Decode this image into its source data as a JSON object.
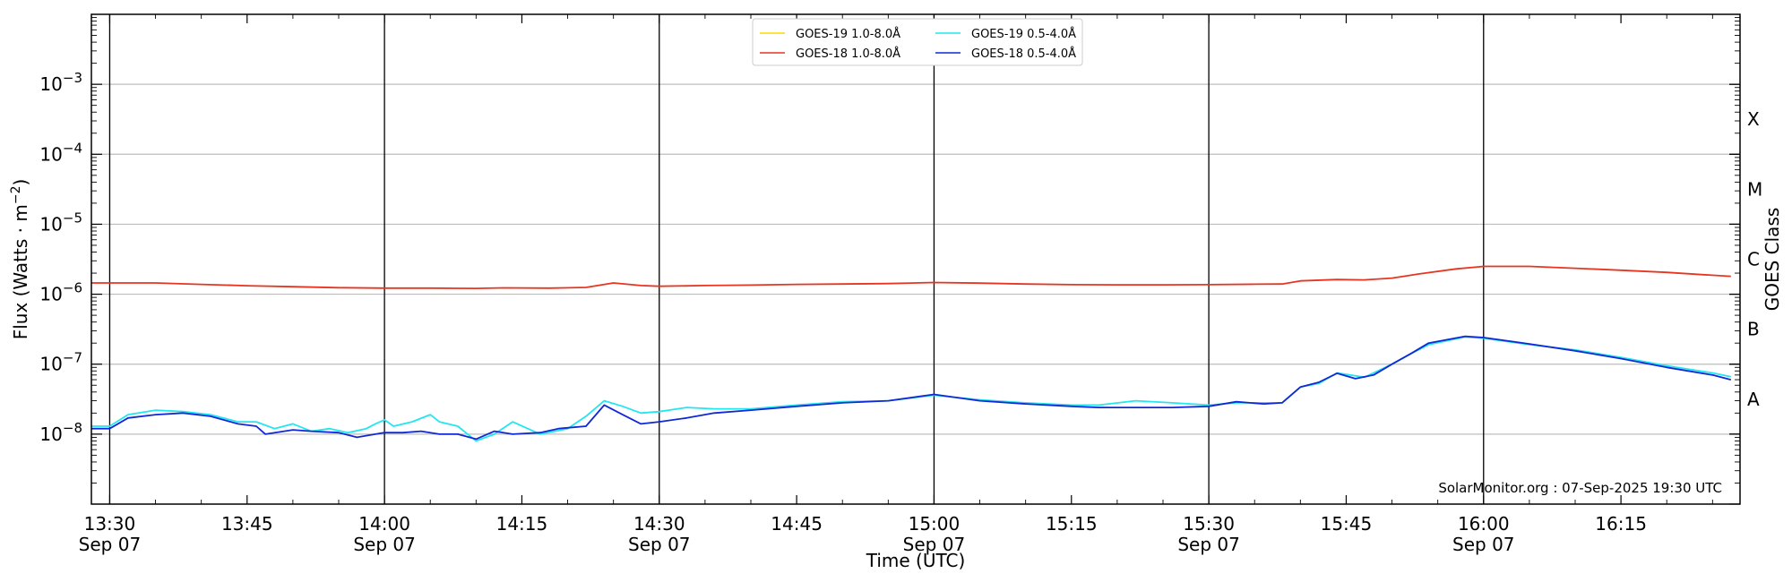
{
  "chart_data": {
    "type": "line",
    "title": "",
    "xlabel": "Time (UTC)",
    "ylabel": "Flux (Watts · m",
    "ylabel_sup": "−2",
    "ylabel_end": ")",
    "right_label": "GOES Class",
    "y_scale": "log",
    "ylim": [
      1e-09,
      0.01
    ],
    "xlim": [
      "13:28",
      "16:28"
    ],
    "y_ticks": [
      {
        "base": "10",
        "exp": "−3",
        "value": 0.001
      },
      {
        "base": "10",
        "exp": "−4",
        "value": 0.0001
      },
      {
        "base": "10",
        "exp": "−5",
        "value": 1e-05
      },
      {
        "base": "10",
        "exp": "−6",
        "value": 1e-06
      },
      {
        "base": "10",
        "exp": "−7",
        "value": 1e-07
      },
      {
        "base": "10",
        "exp": "−8",
        "value": 1e-08
      }
    ],
    "x_ticks": [
      {
        "t": "13:30",
        "label": "13:30",
        "date": "Sep 07",
        "day_line": true
      },
      {
        "t": "13:45",
        "label": "13:45",
        "date": "",
        "day_line": false
      },
      {
        "t": "14:00",
        "label": "14:00",
        "date": "Sep 07",
        "day_line": true
      },
      {
        "t": "14:15",
        "label": "14:15",
        "date": "",
        "day_line": false
      },
      {
        "t": "14:30",
        "label": "14:30",
        "date": "Sep 07",
        "day_line": true
      },
      {
        "t": "14:45",
        "label": "14:45",
        "date": "",
        "day_line": false
      },
      {
        "t": "15:00",
        "label": "15:00",
        "date": "Sep 07",
        "day_line": true
      },
      {
        "t": "15:15",
        "label": "15:15",
        "date": "",
        "day_line": false
      },
      {
        "t": "15:30",
        "label": "15:30",
        "date": "Sep 07",
        "day_line": true
      },
      {
        "t": "15:45",
        "label": "15:45",
        "date": "",
        "day_line": false
      },
      {
        "t": "16:00",
        "label": "16:00",
        "date": "Sep 07",
        "day_line": true
      },
      {
        "t": "16:15",
        "label": "16:15",
        "date": "",
        "day_line": false
      }
    ],
    "goes_classes": [
      {
        "label": "X",
        "value": 0.000316
      },
      {
        "label": "M",
        "value": 3.16e-05
      },
      {
        "label": "C",
        "value": 3.16e-06
      },
      {
        "label": "B",
        "value": 3.16e-07
      },
      {
        "label": "A",
        "value": 3.16e-08
      }
    ],
    "grid": true,
    "legend_position": "top-center",
    "credit": "SolarMonitor.org : 07-Sep-2025 19:30 UTC",
    "series": [
      {
        "name": "GOES-19 1.0-8.0Å",
        "color": "#ffd700",
        "points": []
      },
      {
        "name": "GOES-18 1.0-8.0Å",
        "color": "#e8351f",
        "points": [
          [
            "13:28",
            1.45e-06
          ],
          [
            "13:30",
            1.45e-06
          ],
          [
            "13:35",
            1.45e-06
          ],
          [
            "13:40",
            1.38e-06
          ],
          [
            "13:45",
            1.32e-06
          ],
          [
            "13:50",
            1.28e-06
          ],
          [
            "13:55",
            1.24e-06
          ],
          [
            "14:00",
            1.22e-06
          ],
          [
            "14:05",
            1.22e-06
          ],
          [
            "14:10",
            1.21e-06
          ],
          [
            "14:13",
            1.23e-06
          ],
          [
            "14:18",
            1.22e-06
          ],
          [
            "14:22",
            1.25e-06
          ],
          [
            "14:25",
            1.45e-06
          ],
          [
            "14:28",
            1.33e-06
          ],
          [
            "14:30",
            1.3e-06
          ],
          [
            "14:35",
            1.33e-06
          ],
          [
            "14:40",
            1.35e-06
          ],
          [
            "14:45",
            1.38e-06
          ],
          [
            "14:50",
            1.4e-06
          ],
          [
            "14:55",
            1.42e-06
          ],
          [
            "15:00",
            1.47e-06
          ],
          [
            "15:05",
            1.44e-06
          ],
          [
            "15:10",
            1.4e-06
          ],
          [
            "15:15",
            1.37e-06
          ],
          [
            "15:20",
            1.36e-06
          ],
          [
            "15:25",
            1.36e-06
          ],
          [
            "15:30",
            1.37e-06
          ],
          [
            "15:35",
            1.39e-06
          ],
          [
            "15:38",
            1.4e-06
          ],
          [
            "15:40",
            1.55e-06
          ],
          [
            "15:44",
            1.62e-06
          ],
          [
            "15:47",
            1.6e-06
          ],
          [
            "15:50",
            1.7e-06
          ],
          [
            "15:53",
            1.95e-06
          ],
          [
            "15:57",
            2.3e-06
          ],
          [
            "16:00",
            2.5e-06
          ],
          [
            "16:05",
            2.5e-06
          ],
          [
            "16:10",
            2.35e-06
          ],
          [
            "16:15",
            2.2e-06
          ],
          [
            "16:20",
            2.05e-06
          ],
          [
            "16:24",
            1.9e-06
          ],
          [
            "16:27",
            1.8e-06
          ]
        ]
      },
      {
        "name": "GOES-19 0.5-4.0Å",
        "color": "#22e6f0",
        "points": [
          [
            "13:28",
            1.3e-08
          ],
          [
            "13:30",
            1.3e-08
          ],
          [
            "13:32",
            1.9e-08
          ],
          [
            "13:35",
            2.2e-08
          ],
          [
            "13:38",
            2.1e-08
          ],
          [
            "13:41",
            1.9e-08
          ],
          [
            "13:44",
            1.5e-08
          ],
          [
            "13:46",
            1.5e-08
          ],
          [
            "13:48",
            1.2e-08
          ],
          [
            "13:50",
            1.4e-08
          ],
          [
            "13:52",
            1.1e-08
          ],
          [
            "13:54",
            1.2e-08
          ],
          [
            "13:56",
            1.05e-08
          ],
          [
            "13:58",
            1.2e-08
          ],
          [
            "13:59",
            1.4e-08
          ],
          [
            "14:00",
            1.6e-08
          ],
          [
            "14:01",
            1.3e-08
          ],
          [
            "14:03",
            1.5e-08
          ],
          [
            "14:05",
            1.9e-08
          ],
          [
            "14:06",
            1.5e-08
          ],
          [
            "14:08",
            1.3e-08
          ],
          [
            "14:10",
            8e-09
          ],
          [
            "14:12",
            1e-08
          ],
          [
            "14:14",
            1.5e-08
          ],
          [
            "14:17",
            1e-08
          ],
          [
            "14:20",
            1.2e-08
          ],
          [
            "14:22",
            1.8e-08
          ],
          [
            "14:24",
            3e-08
          ],
          [
            "14:26",
            2.5e-08
          ],
          [
            "14:28",
            2e-08
          ],
          [
            "14:30",
            2.1e-08
          ],
          [
            "14:33",
            2.4e-08
          ],
          [
            "14:36",
            2.3e-08
          ],
          [
            "14:40",
            2.3e-08
          ],
          [
            "14:45",
            2.6e-08
          ],
          [
            "14:50",
            2.9e-08
          ],
          [
            "14:55",
            3e-08
          ],
          [
            "15:00",
            3.6e-08
          ],
          [
            "15:05",
            3.1e-08
          ],
          [
            "15:10",
            2.8e-08
          ],
          [
            "15:15",
            2.6e-08
          ],
          [
            "15:18",
            2.6e-08
          ],
          [
            "15:22",
            3e-08
          ],
          [
            "15:26",
            2.8e-08
          ],
          [
            "15:30",
            2.6e-08
          ],
          [
            "15:33",
            2.8e-08
          ],
          [
            "15:36",
            2.8e-08
          ],
          [
            "15:38",
            2.8e-08
          ],
          [
            "15:40",
            4.7e-08
          ],
          [
            "15:42",
            5.3e-08
          ],
          [
            "15:44",
            7.5e-08
          ],
          [
            "15:47",
            6.5e-08
          ],
          [
            "15:50",
            1e-07
          ],
          [
            "15:52",
            1.4e-07
          ],
          [
            "15:54",
            1.9e-07
          ],
          [
            "15:58",
            2.45e-07
          ],
          [
            "16:00",
            2.35e-07
          ],
          [
            "16:05",
            1.9e-07
          ],
          [
            "16:10",
            1.6e-07
          ],
          [
            "16:15",
            1.25e-07
          ],
          [
            "16:20",
            9.5e-08
          ],
          [
            "16:25",
            7.5e-08
          ],
          [
            "16:27",
            6.6e-08
          ]
        ]
      },
      {
        "name": "GOES-18 0.5-4.0Å",
        "color": "#1128d6",
        "points": [
          [
            "13:28",
            1.2e-08
          ],
          [
            "13:30",
            1.2e-08
          ],
          [
            "13:32",
            1.7e-08
          ],
          [
            "13:35",
            1.9e-08
          ],
          [
            "13:38",
            2e-08
          ],
          [
            "13:41",
            1.8e-08
          ],
          [
            "13:44",
            1.4e-08
          ],
          [
            "13:46",
            1.3e-08
          ],
          [
            "13:47",
            1e-08
          ],
          [
            "13:50",
            1.15e-08
          ],
          [
            "13:52",
            1.1e-08
          ],
          [
            "13:55",
            1.05e-08
          ],
          [
            "13:57",
            9e-09
          ],
          [
            "13:59",
            1e-08
          ],
          [
            "14:00",
            1.05e-08
          ],
          [
            "14:02",
            1.05e-08
          ],
          [
            "14:04",
            1.1e-08
          ],
          [
            "14:06",
            1e-08
          ],
          [
            "14:08",
            1e-08
          ],
          [
            "14:10",
            8.5e-09
          ],
          [
            "14:12",
            1.1e-08
          ],
          [
            "14:14",
            1e-08
          ],
          [
            "14:17",
            1.05e-08
          ],
          [
            "14:19",
            1.2e-08
          ],
          [
            "14:22",
            1.3e-08
          ],
          [
            "14:24",
            2.6e-08
          ],
          [
            "14:26",
            1.9e-08
          ],
          [
            "14:28",
            1.4e-08
          ],
          [
            "14:30",
            1.5e-08
          ],
          [
            "14:33",
            1.7e-08
          ],
          [
            "14:36",
            2e-08
          ],
          [
            "14:40",
            2.2e-08
          ],
          [
            "14:45",
            2.5e-08
          ],
          [
            "14:50",
            2.8e-08
          ],
          [
            "14:55",
            3e-08
          ],
          [
            "15:00",
            3.7e-08
          ],
          [
            "15:05",
            3e-08
          ],
          [
            "15:10",
            2.7e-08
          ],
          [
            "15:15",
            2.5e-08
          ],
          [
            "15:18",
            2.4e-08
          ],
          [
            "15:22",
            2.4e-08
          ],
          [
            "15:26",
            2.4e-08
          ],
          [
            "15:30",
            2.5e-08
          ],
          [
            "15:33",
            2.9e-08
          ],
          [
            "15:36",
            2.7e-08
          ],
          [
            "15:38",
            2.8e-08
          ],
          [
            "15:40",
            4.7e-08
          ],
          [
            "15:42",
            5.5e-08
          ],
          [
            "15:44",
            7.4e-08
          ],
          [
            "15:46",
            6.2e-08
          ],
          [
            "15:48",
            7e-08
          ],
          [
            "15:50",
            1e-07
          ],
          [
            "15:52",
            1.4e-07
          ],
          [
            "15:54",
            2e-07
          ],
          [
            "15:58",
            2.5e-07
          ],
          [
            "16:00",
            2.4e-07
          ],
          [
            "16:05",
            1.95e-07
          ],
          [
            "16:10",
            1.55e-07
          ],
          [
            "16:15",
            1.2e-07
          ],
          [
            "16:20",
            9e-08
          ],
          [
            "16:25",
            7e-08
          ],
          [
            "16:27",
            6e-08
          ]
        ]
      }
    ]
  }
}
